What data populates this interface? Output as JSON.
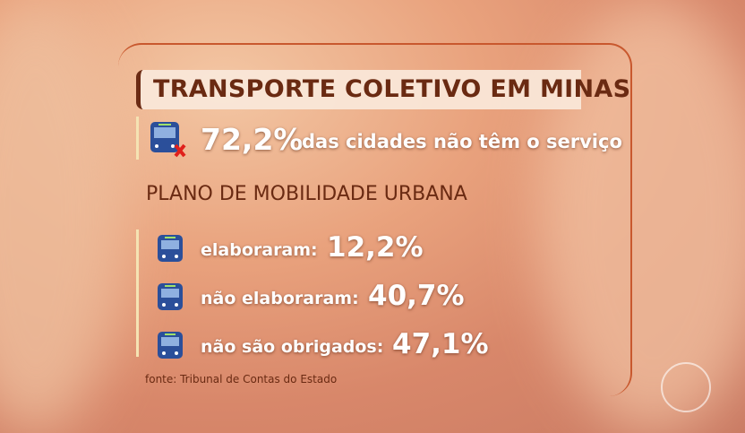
{
  "title": "TRANSPORTE COLETIVO EM MINAS",
  "headline": {
    "value": "72,2%",
    "text": "das cidades não têm o serviço"
  },
  "subtitle": "PLANO DE MOBILIDADE URBANA",
  "items": [
    {
      "label": "elaboraram:",
      "value": "12,2%"
    },
    {
      "label": "não elaboraram:",
      "value": "40,7%"
    },
    {
      "label": "não são obrigados:",
      "value": "47,1%"
    }
  ],
  "source": "fonte: Tribunal de Contas do Estado"
}
